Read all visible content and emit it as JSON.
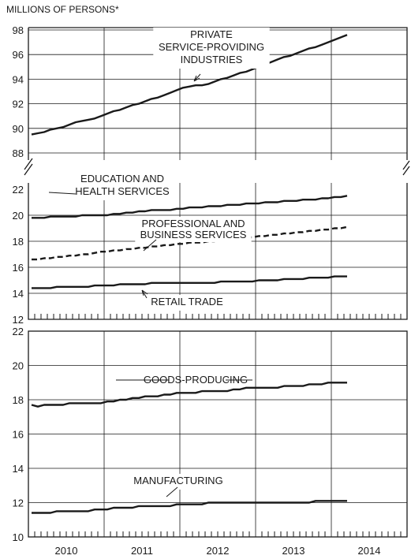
{
  "unit_label": "MILLIONS OF PERSONS*",
  "chart_data": [
    {
      "type": "line",
      "panel": "top-upper",
      "ylim": [
        88,
        98
      ],
      "yticks": [
        88,
        90,
        92,
        94,
        96,
        98
      ],
      "grid": true,
      "series": [
        {
          "name": "PRIVATE SERVICE-PROVIDING INDUSTRIES",
          "label_lines": [
            "PRIVATE",
            "SERVICE-PROVIDING",
            "INDUSTRIES"
          ],
          "values": [
            89.5,
            89.6,
            89.7,
            89.9,
            90.0,
            90.1,
            90.3,
            90.5,
            90.6,
            90.7,
            90.8,
            91.0,
            91.2,
            91.4,
            91.5,
            91.7,
            91.9,
            92.0,
            92.2,
            92.4,
            92.5,
            92.7,
            92.9,
            93.1,
            93.3,
            93.4,
            93.5,
            93.5,
            93.6,
            93.8,
            94.0,
            94.1,
            94.3,
            94.5,
            94.6,
            94.8,
            95.0,
            95.2,
            95.4,
            95.6,
            95.8,
            95.9,
            96.1,
            96.3,
            96.5,
            96.6,
            96.8,
            97.0,
            97.2,
            97.4,
            97.6
          ]
        }
      ]
    },
    {
      "type": "line",
      "panel": "top-lower",
      "ylim": [
        12,
        22
      ],
      "yticks": [
        12,
        14,
        16,
        18,
        20,
        22
      ],
      "grid": true,
      "series": [
        {
          "name": "EDUCATION AND HEALTH SERVICES",
          "label_lines": [
            "EDUCATION AND",
            "HEALTH SERVICES"
          ],
          "style": "solid",
          "values": [
            19.8,
            19.8,
            19.8,
            19.9,
            19.9,
            19.9,
            19.9,
            19.9,
            20.0,
            20.0,
            20.0,
            20.0,
            20.0,
            20.1,
            20.1,
            20.2,
            20.2,
            20.3,
            20.3,
            20.4,
            20.4,
            20.4,
            20.4,
            20.5,
            20.5,
            20.6,
            20.6,
            20.6,
            20.7,
            20.7,
            20.7,
            20.8,
            20.8,
            20.8,
            20.9,
            20.9,
            20.9,
            21.0,
            21.0,
            21.0,
            21.1,
            21.1,
            21.1,
            21.2,
            21.2,
            21.2,
            21.3,
            21.3,
            21.4,
            21.4,
            21.5
          ]
        },
        {
          "name": "PROFESSIONAL AND BUSINESS SERVICES",
          "label_lines": [
            "PROFESSIONAL AND",
            "BUSINESS SERVICES"
          ],
          "style": "dashed",
          "values": [
            16.6,
            16.6,
            16.7,
            16.7,
            16.8,
            16.8,
            16.9,
            16.9,
            17.0,
            17.0,
            17.1,
            17.2,
            17.2,
            17.3,
            17.3,
            17.4,
            17.4,
            17.5,
            17.5,
            17.6,
            17.6,
            17.7,
            17.7,
            17.8,
            17.8,
            17.9,
            17.9,
            17.9,
            18.0,
            18.0,
            18.1,
            18.1,
            18.2,
            18.2,
            18.3,
            18.3,
            18.4,
            18.4,
            18.5,
            18.5,
            18.6,
            18.6,
            18.7,
            18.7,
            18.8,
            18.8,
            18.9,
            18.9,
            19.0,
            19.0,
            19.1
          ]
        },
        {
          "name": "RETAIL TRADE",
          "label_lines": [
            "RETAIL TRADE"
          ],
          "style": "solid",
          "values": [
            14.4,
            14.4,
            14.4,
            14.4,
            14.5,
            14.5,
            14.5,
            14.5,
            14.5,
            14.5,
            14.6,
            14.6,
            14.6,
            14.6,
            14.7,
            14.7,
            14.7,
            14.7,
            14.7,
            14.8,
            14.8,
            14.8,
            14.8,
            14.8,
            14.8,
            14.8,
            14.8,
            14.8,
            14.8,
            14.8,
            14.9,
            14.9,
            14.9,
            14.9,
            14.9,
            14.9,
            15.0,
            15.0,
            15.0,
            15.0,
            15.1,
            15.1,
            15.1,
            15.1,
            15.2,
            15.2,
            15.2,
            15.2,
            15.3,
            15.3,
            15.3
          ]
        }
      ]
    },
    {
      "type": "line",
      "panel": "bottom",
      "ylim": [
        10,
        22
      ],
      "yticks": [
        10,
        12,
        14,
        16,
        18,
        20,
        22
      ],
      "grid": true,
      "series": [
        {
          "name": "GOODS-PRODUCING",
          "label_lines": [
            "GOODS-PRODUCING"
          ],
          "values": [
            17.7,
            17.6,
            17.7,
            17.7,
            17.7,
            17.7,
            17.8,
            17.8,
            17.8,
            17.8,
            17.8,
            17.8,
            17.9,
            17.9,
            18.0,
            18.0,
            18.1,
            18.1,
            18.2,
            18.2,
            18.2,
            18.3,
            18.3,
            18.4,
            18.4,
            18.4,
            18.4,
            18.5,
            18.5,
            18.5,
            18.5,
            18.5,
            18.6,
            18.6,
            18.7,
            18.7,
            18.7,
            18.7,
            18.7,
            18.7,
            18.8,
            18.8,
            18.8,
            18.8,
            18.9,
            18.9,
            18.9,
            19.0,
            19.0,
            19.0,
            19.0
          ]
        },
        {
          "name": "MANUFACTURING",
          "label_lines": [
            "MANUFACTURING"
          ],
          "values": [
            11.4,
            11.4,
            11.4,
            11.4,
            11.5,
            11.5,
            11.5,
            11.5,
            11.5,
            11.5,
            11.6,
            11.6,
            11.6,
            11.7,
            11.7,
            11.7,
            11.7,
            11.8,
            11.8,
            11.8,
            11.8,
            11.8,
            11.8,
            11.9,
            11.9,
            11.9,
            11.9,
            11.9,
            12.0,
            12.0,
            12.0,
            12.0,
            12.0,
            12.0,
            12.0,
            12.0,
            12.0,
            12.0,
            12.0,
            12.0,
            12.0,
            12.0,
            12.0,
            12.0,
            12.0,
            12.1,
            12.1,
            12.1,
            12.1,
            12.1,
            12.1
          ]
        }
      ]
    }
  ],
  "x_axis": {
    "years": [
      "2010",
      "2011",
      "2012",
      "2013",
      "2014"
    ],
    "months_per_year": 12,
    "data_start": "2010-01",
    "data_end": "2014-03"
  }
}
